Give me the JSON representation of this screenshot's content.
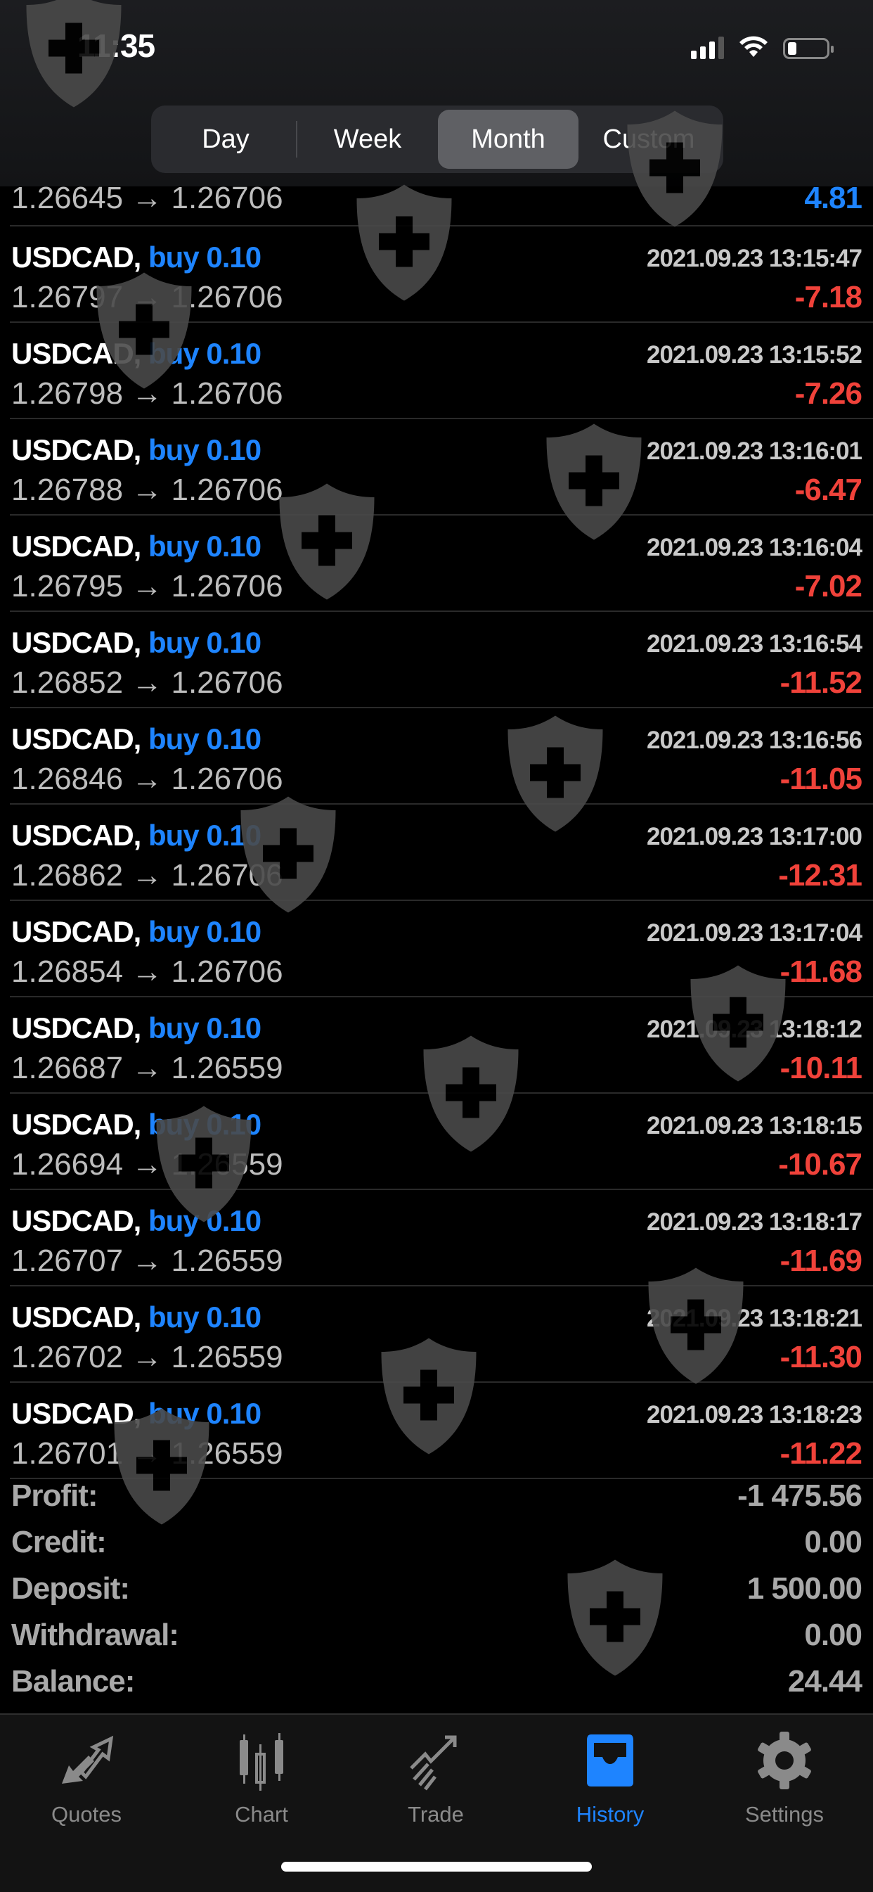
{
  "status_bar": {
    "time": "11:35"
  },
  "period_tabs": [
    {
      "label": "Day",
      "active": false
    },
    {
      "label": "Week",
      "active": false
    },
    {
      "label": "Month",
      "active": true
    },
    {
      "label": "Custom",
      "active": false
    }
  ],
  "partial_row": {
    "prices": "1.26645 → 1.26706",
    "profit": "4.81"
  },
  "deals": [
    {
      "symbol": "USDCAD,",
      "side": "buy 0.10",
      "date": "2021.09.23 13:15:47",
      "prices": "1.26797 → 1.26706",
      "profit": "-7.18"
    },
    {
      "symbol": "USDCAD,",
      "side": "buy 0.10",
      "date": "2021.09.23 13:15:52",
      "prices": "1.26798 → 1.26706",
      "profit": "-7.26"
    },
    {
      "symbol": "USDCAD,",
      "side": "buy 0.10",
      "date": "2021.09.23 13:16:01",
      "prices": "1.26788 → 1.26706",
      "profit": "-6.47"
    },
    {
      "symbol": "USDCAD,",
      "side": "buy 0.10",
      "date": "2021.09.23 13:16:04",
      "prices": "1.26795 → 1.26706",
      "profit": "-7.02"
    },
    {
      "symbol": "USDCAD,",
      "side": "buy 0.10",
      "date": "2021.09.23 13:16:54",
      "prices": "1.26852 → 1.26706",
      "profit": "-11.52"
    },
    {
      "symbol": "USDCAD,",
      "side": "buy 0.10",
      "date": "2021.09.23 13:16:56",
      "prices": "1.26846 → 1.26706",
      "profit": "-11.05"
    },
    {
      "symbol": "USDCAD,",
      "side": "buy 0.10",
      "date": "2021.09.23 13:17:00",
      "prices": "1.26862 → 1.26706",
      "profit": "-12.31"
    },
    {
      "symbol": "USDCAD,",
      "side": "buy 0.10",
      "date": "2021.09.23 13:17:04",
      "prices": "1.26854 → 1.26706",
      "profit": "-11.68"
    },
    {
      "symbol": "USDCAD,",
      "side": "buy 0.10",
      "date": "2021.09.23 13:18:12",
      "prices": "1.26687 → 1.26559",
      "profit": "-10.11"
    },
    {
      "symbol": "USDCAD,",
      "side": "buy 0.10",
      "date": "2021.09.23 13:18:15",
      "prices": "1.26694 → 1.26559",
      "profit": "-10.67"
    },
    {
      "symbol": "USDCAD,",
      "side": "buy 0.10",
      "date": "2021.09.23 13:18:17",
      "prices": "1.26707 → 1.26559",
      "profit": "-11.69"
    },
    {
      "symbol": "USDCAD,",
      "side": "buy 0.10",
      "date": "2021.09.23 13:18:21",
      "prices": "1.26702 → 1.26559",
      "profit": "-11.30"
    },
    {
      "symbol": "USDCAD,",
      "side": "buy 0.10",
      "date": "2021.09.23 13:18:23",
      "prices": "1.26701 → 1.26559",
      "profit": "-11.22"
    }
  ],
  "summary": [
    {
      "label": "Profit:",
      "value": "-1 475.56"
    },
    {
      "label": "Credit:",
      "value": "0.00"
    },
    {
      "label": "Deposit:",
      "value": "1 500.00"
    },
    {
      "label": "Withdrawal:",
      "value": "0.00"
    },
    {
      "label": "Balance:",
      "value": "24.44"
    }
  ],
  "tab_bar": [
    {
      "label": "Quotes",
      "icon": "quotes-arrows-icon",
      "active": false
    },
    {
      "label": "Chart",
      "icon": "candlestick-icon",
      "active": false
    },
    {
      "label": "Trade",
      "icon": "trade-trend-icon",
      "active": false
    },
    {
      "label": "History",
      "icon": "inbox-tray-icon",
      "active": true
    },
    {
      "label": "Settings",
      "icon": "gear-icon",
      "active": false
    }
  ],
  "colors": {
    "accent": "#1e84ff",
    "loss": "#f0423a",
    "background": "#000000",
    "tabbar": "#131313"
  }
}
